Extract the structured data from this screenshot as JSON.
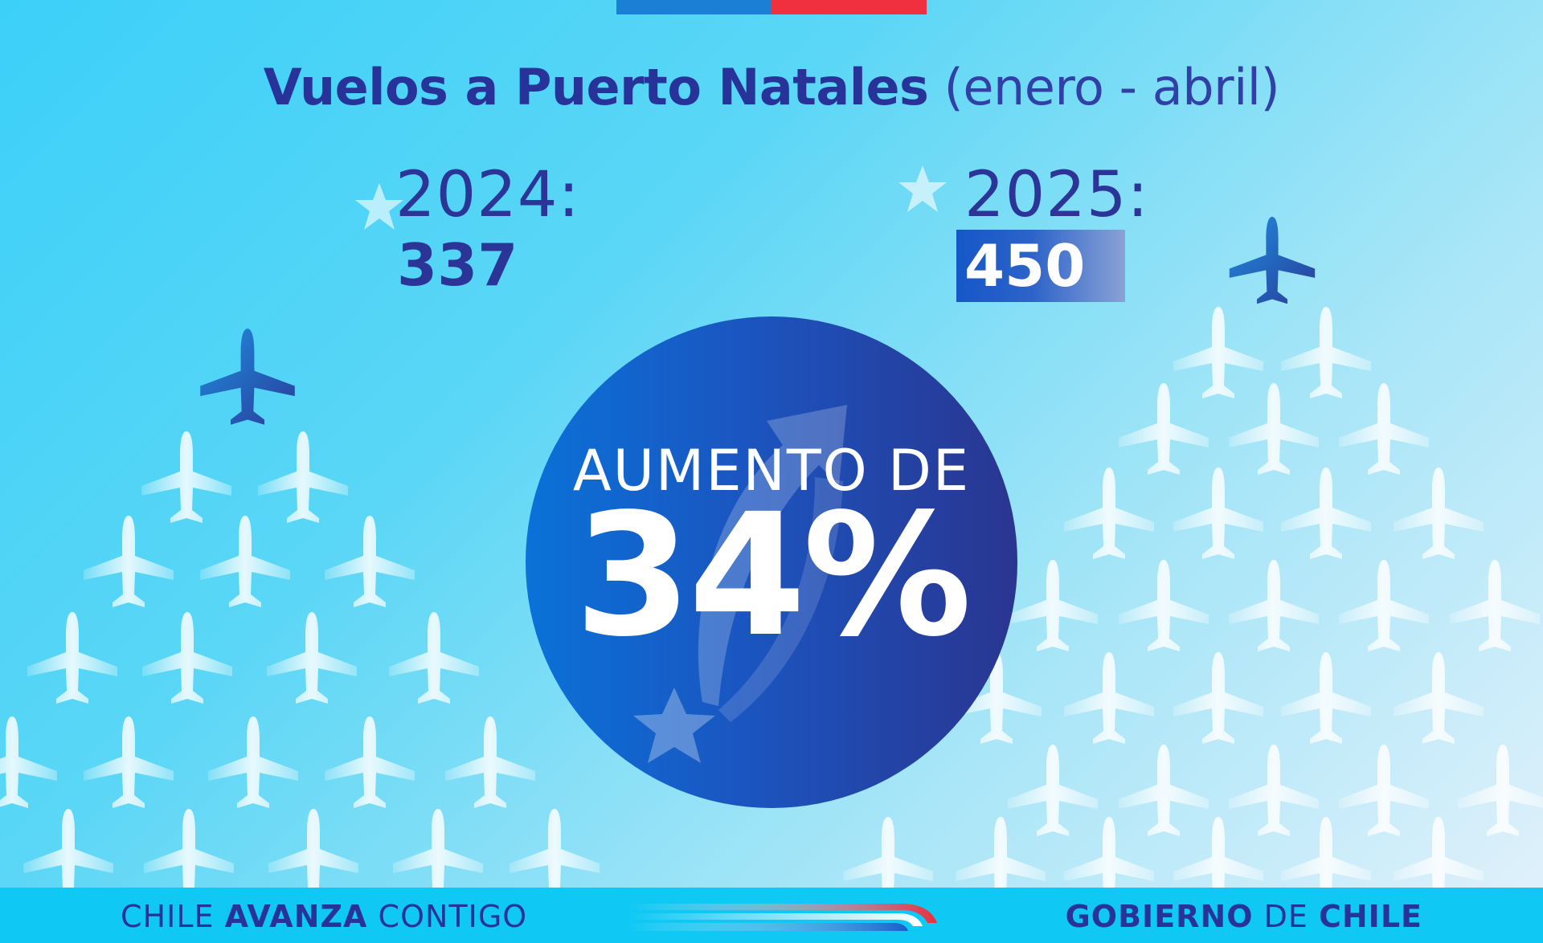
{
  "title": {
    "bold": "Vuelos a Puerto Natales",
    "light": "(enero - abril)"
  },
  "stats": {
    "y2024": {
      "year": "2024:",
      "value": "337"
    },
    "y2025": {
      "year": "2025:",
      "value": "450"
    }
  },
  "highlight": {
    "label": "AUMENTO DE",
    "value": "34%"
  },
  "footer": {
    "left_1": "CHILE",
    "left_2": "AVANZA",
    "left_3": "CONTIGO",
    "right_1": "GOBIERNO",
    "right_2": "DE",
    "right_3": "CHILE"
  },
  "colors": {
    "navy": "#28339a",
    "red": "#f0303e",
    "blue": "#1b7fd6",
    "footer": "#10c8f4"
  },
  "icons": [
    "airplane-icon",
    "star-icon",
    "arrow-up-icon",
    "swoosh-logo"
  ]
}
